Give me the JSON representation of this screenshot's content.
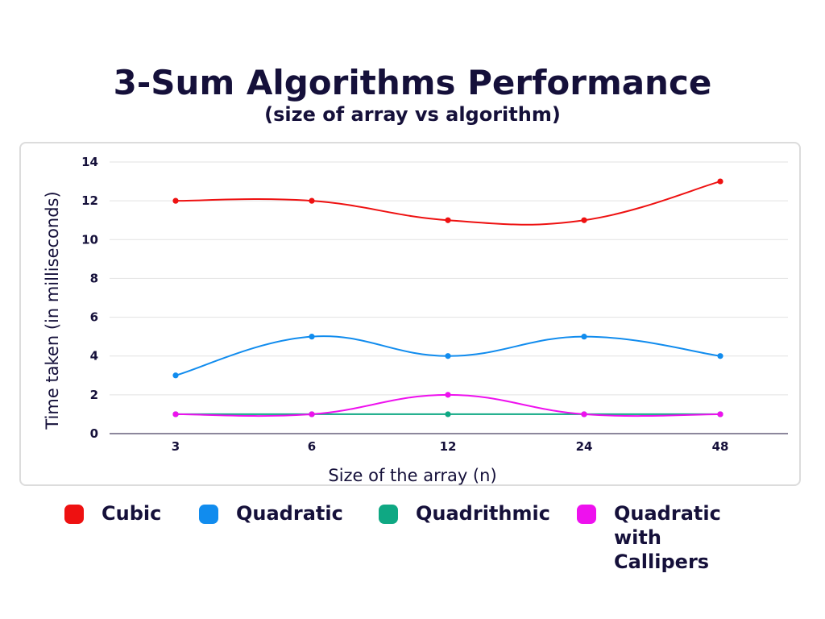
{
  "chart_data": {
    "type": "line",
    "title": "3-Sum Algorithms Performance",
    "subtitle": "(size of array vs algorithm)",
    "xlabel": "Size of the array (n)",
    "ylabel": "Time taken (in milliseconds)",
    "categories": [
      "3",
      "6",
      "12",
      "24",
      "48"
    ],
    "yticks": [
      "0",
      "2",
      "4",
      "6",
      "8",
      "10",
      "12",
      "14"
    ],
    "ylim": [
      0,
      14
    ],
    "grid": true,
    "legend_position": "bottom",
    "series": [
      {
        "name": "Cubic",
        "color": "#ee1111",
        "values": [
          12,
          12,
          11,
          11,
          13
        ]
      },
      {
        "name": "Quadratic",
        "color": "#118cee",
        "values": [
          3,
          5,
          4,
          5,
          4
        ]
      },
      {
        "name": "Quadrithmic",
        "color": "#0fa883",
        "values": [
          1,
          1,
          1,
          1,
          1
        ]
      },
      {
        "name": "Quadratic with Callipers",
        "color": "#ee11ee",
        "values": [
          1,
          1,
          2,
          1,
          1
        ]
      }
    ]
  }
}
